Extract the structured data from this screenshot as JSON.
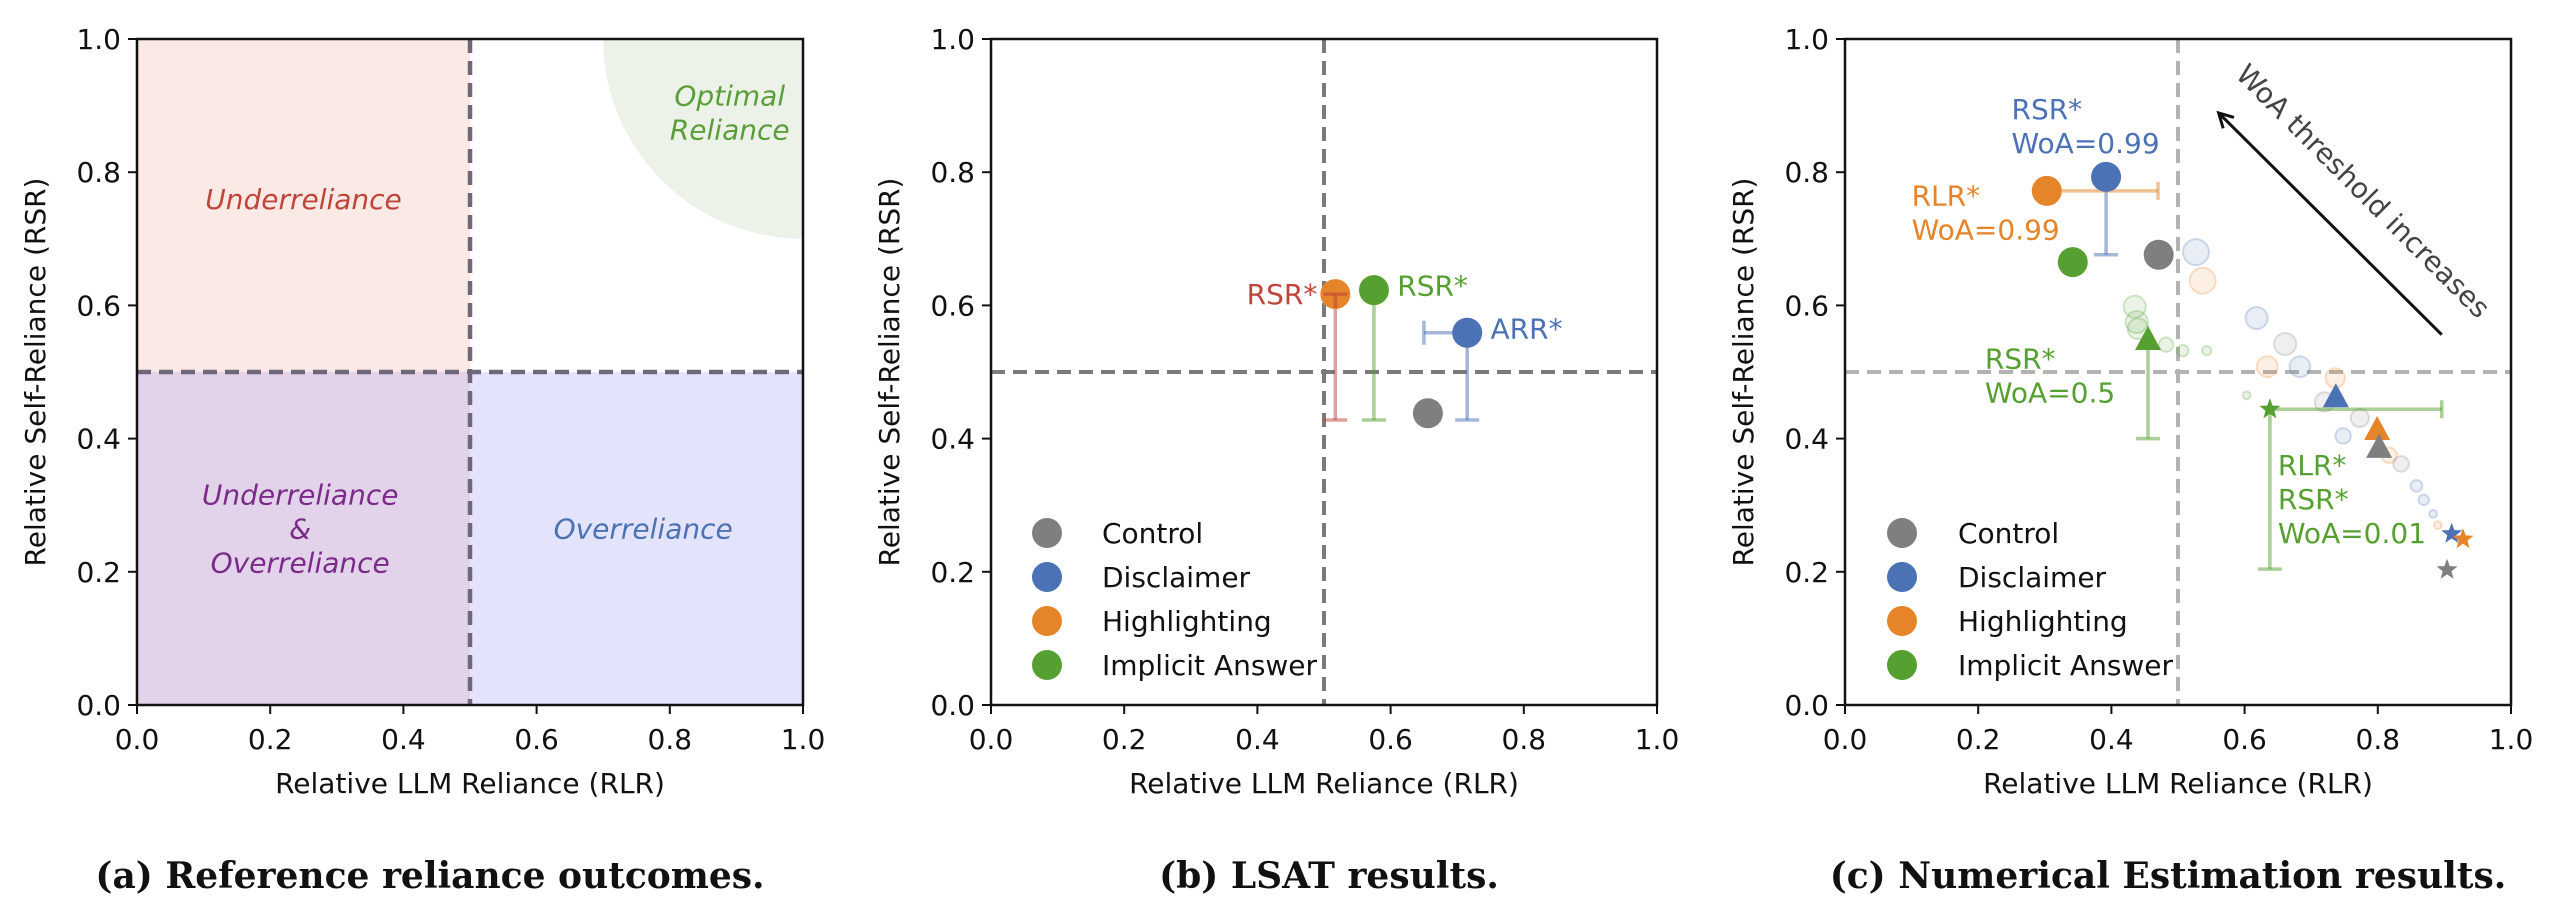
{
  "colors": {
    "control": "#7f7f7f",
    "disclaimer": "#4a72b5",
    "highlighting": "#e6842a",
    "implicit_answer": "#55a030",
    "underreliance": "#c0443a",
    "both": "#7b2a8a",
    "overreliance": "#4a72b5",
    "optimal": "#5a9e3a",
    "quad_under": "#fbe9e6",
    "quad_both": "#e2d3ea",
    "quad_over": "#e3e3fb",
    "optimal_fill": "#edf2e8"
  },
  "chart_data": [
    {
      "type": "scatter",
      "id": "a",
      "caption": "(a) Reference reliance outcomes.",
      "xlabel": "Relative LLM Reliance (RLR)",
      "ylabel": "Relative Self-Reliance (RSR)",
      "xlim": [
        0,
        1
      ],
      "ylim": [
        0,
        1
      ],
      "xticks": [
        "0.0",
        "0.2",
        "0.4",
        "0.6",
        "0.8",
        "1.0"
      ],
      "yticks": [
        "0.0",
        "0.2",
        "0.4",
        "0.6",
        "0.8",
        "1.0"
      ],
      "reference_lines": {
        "x": 0.5,
        "y": 0.5
      },
      "regions": [
        {
          "name": "Underreliance",
          "lines": [
            "Underreliance"
          ],
          "x": [
            0,
            0.5
          ],
          "y": [
            0.5,
            1
          ],
          "label_at": [
            0.25,
            0.76
          ],
          "color_key": "underreliance",
          "fill_key": "quad_under"
        },
        {
          "name": "Underreliance & Overreliance",
          "lines": [
            "Underreliance",
            "&",
            "Overreliance"
          ],
          "x": [
            0,
            0.5
          ],
          "y": [
            0,
            0.5
          ],
          "label_at": [
            0.245,
            0.265
          ],
          "color_key": "both",
          "fill_key": "quad_both"
        },
        {
          "name": "Overreliance",
          "lines": [
            "Overreliance"
          ],
          "x": [
            0.5,
            1
          ],
          "y": [
            0,
            0.5
          ],
          "label_at": [
            0.76,
            0.265
          ],
          "color_key": "overreliance",
          "fill_key": "quad_over"
        }
      ],
      "optimal_region": {
        "lines": [
          "Optimal",
          "Reliance"
        ],
        "center": [
          1,
          1
        ],
        "radius": 0.3,
        "label_at": [
          0.89,
          0.89
        ]
      }
    },
    {
      "type": "scatter",
      "id": "b",
      "caption": "(b) LSAT results.",
      "xlabel": "Relative LLM Reliance (RLR)",
      "ylabel": "Relative Self-Reliance (RSR)",
      "xlim": [
        0,
        1
      ],
      "ylim": [
        0,
        1
      ],
      "xticks": [
        "0.0",
        "0.2",
        "0.4",
        "0.6",
        "0.8",
        "1.0"
      ],
      "yticks": [
        "0.0",
        "0.2",
        "0.4",
        "0.6",
        "0.8",
        "1.0"
      ],
      "reference_lines": {
        "x": 0.5,
        "y": 0.5
      },
      "legend": {
        "placement": "lower-left",
        "entries": [
          {
            "label": "Control",
            "color_key": "control"
          },
          {
            "label": "Disclaimer",
            "color_key": "disclaimer"
          },
          {
            "label": "Highlighting",
            "color_key": "highlighting"
          },
          {
            "label": "Implicit Answer",
            "color_key": "implicit_answer"
          }
        ]
      },
      "points": [
        {
          "series": "Control",
          "color_key": "control",
          "x": 0.656,
          "y": 0.438
        },
        {
          "series": "Disclaimer",
          "color_key": "disclaimer",
          "x": 0.715,
          "y": 0.559,
          "err_y_low": 0.428,
          "err_x_low": 0.65
        },
        {
          "series": "Highlighting",
          "color_key": "highlighting",
          "x": 0.517,
          "y": 0.617,
          "err_y_low": 0.428,
          "err_color_key": "underreliance"
        },
        {
          "series": "Implicit Answer",
          "color_key": "implicit_answer",
          "x": 0.575,
          "y": 0.623,
          "err_y_low": 0.428
        }
      ],
      "annotations": [
        {
          "text": "RSR*",
          "x": 0.49,
          "y": 0.617,
          "anchor": "end",
          "color_key": "underreliance"
        },
        {
          "text": "RSR*",
          "x": 0.61,
          "y": 0.63,
          "anchor": "start",
          "color_key": "implicit_answer"
        },
        {
          "text": "ARR*",
          "x": 0.75,
          "y": 0.565,
          "anchor": "start",
          "color_key": "disclaimer"
        }
      ]
    },
    {
      "type": "scatter",
      "id": "c",
      "caption": "(c) Numerical Estimation results.",
      "xlabel": "Relative LLM Reliance (RLR)",
      "ylabel": "Relative Self-Reliance (RSR)",
      "xlim": [
        0,
        1
      ],
      "ylim": [
        0,
        1
      ],
      "xticks": [
        "0.0",
        "0.2",
        "0.4",
        "0.6",
        "0.8",
        "1.0"
      ],
      "yticks": [
        "0.0",
        "0.2",
        "0.4",
        "0.6",
        "0.8",
        "1.0"
      ],
      "reference_lines": {
        "x": 0.5,
        "y": 0.5
      },
      "legend": {
        "placement": "lower-left",
        "entries": [
          {
            "label": "Control",
            "color_key": "control"
          },
          {
            "label": "Disclaimer",
            "color_key": "disclaimer"
          },
          {
            "label": "Highlighting",
            "color_key": "highlighting"
          },
          {
            "label": "Implicit Answer",
            "color_key": "implicit_answer"
          }
        ]
      },
      "points": [
        {
          "series": "Disclaimer",
          "woa": 0.99,
          "marker": "circle",
          "color_key": "disclaimer",
          "x": 0.392,
          "y": 0.793,
          "err_y_low": 0.676
        },
        {
          "series": "Highlighting",
          "woa": 0.99,
          "marker": "circle",
          "color_key": "highlighting",
          "x": 0.303,
          "y": 0.772,
          "err_x_high": 0.47
        },
        {
          "series": "Implicit Answer",
          "woa": 0.99,
          "marker": "circle",
          "color_key": "implicit_answer",
          "x": 0.342,
          "y": 0.665
        },
        {
          "series": "Control",
          "woa": 0.99,
          "marker": "circle",
          "color_key": "control",
          "x": 0.471,
          "y": 0.676
        },
        {
          "series": "Implicit Answer",
          "woa": 0.5,
          "marker": "triangle",
          "color_key": "implicit_answer",
          "x": 0.455,
          "y": 0.548,
          "err_y_low": 0.4
        },
        {
          "series": "Disclaimer",
          "woa": 0.5,
          "marker": "triangle",
          "color_key": "disclaimer",
          "x": 0.737,
          "y": 0.462
        },
        {
          "series": "Highlighting",
          "woa": 0.5,
          "marker": "triangle",
          "color_key": "highlighting",
          "x": 0.799,
          "y": 0.413
        },
        {
          "series": "Control",
          "woa": 0.5,
          "marker": "triangle",
          "color_key": "control",
          "x": 0.802,
          "y": 0.386
        },
        {
          "series": "Implicit Answer",
          "woa": 0.01,
          "marker": "star",
          "color_key": "implicit_answer",
          "x": 0.638,
          "y": 0.444,
          "err_x_high": 0.896,
          "err_y_low": 0.204
        },
        {
          "series": "Disclaimer",
          "woa": 0.01,
          "marker": "star",
          "color_key": "disclaimer",
          "x": 0.911,
          "y": 0.257
        },
        {
          "series": "Highlighting",
          "woa": 0.01,
          "marker": "star",
          "color_key": "highlighting",
          "x": 0.928,
          "y": 0.249
        },
        {
          "series": "Control",
          "woa": 0.01,
          "marker": "star",
          "color_key": "control",
          "x": 0.904,
          "y": 0.203
        }
      ],
      "faint_points": [
        {
          "color_key": "disclaimer",
          "x": 0.527,
          "y": 0.68,
          "size": 1.0
        },
        {
          "color_key": "highlighting",
          "x": 0.537,
          "y": 0.637,
          "size": 1.0
        },
        {
          "color_key": "disclaimer",
          "x": 0.618,
          "y": 0.581,
          "size": 0.85
        },
        {
          "color_key": "control",
          "x": 0.661,
          "y": 0.542,
          "size": 0.85
        },
        {
          "color_key": "highlighting",
          "x": 0.634,
          "y": 0.508,
          "size": 0.8
        },
        {
          "color_key": "disclaimer",
          "x": 0.683,
          "y": 0.508,
          "size": 0.8
        },
        {
          "color_key": "highlighting",
          "x": 0.736,
          "y": 0.491,
          "size": 0.75
        },
        {
          "color_key": "control",
          "x": 0.72,
          "y": 0.455,
          "size": 0.75
        },
        {
          "color_key": "control",
          "x": 0.773,
          "y": 0.431,
          "size": 0.7
        },
        {
          "color_key": "disclaimer",
          "x": 0.748,
          "y": 0.404,
          "size": 0.6
        },
        {
          "color_key": "highlighting",
          "x": 0.817,
          "y": 0.375,
          "size": 0.6
        },
        {
          "color_key": "control",
          "x": 0.835,
          "y": 0.362,
          "size": 0.6
        },
        {
          "color_key": "disclaimer",
          "x": 0.858,
          "y": 0.329,
          "size": 0.45
        },
        {
          "color_key": "disclaimer",
          "x": 0.869,
          "y": 0.308,
          "size": 0.4
        },
        {
          "color_key": "disclaimer",
          "x": 0.883,
          "y": 0.287,
          "size": 0.3
        },
        {
          "color_key": "highlighting",
          "x": 0.89,
          "y": 0.27,
          "size": 0.3
        },
        {
          "color_key": "implicit_answer",
          "x": 0.435,
          "y": 0.598,
          "size": 0.85
        },
        {
          "color_key": "implicit_answer",
          "x": 0.438,
          "y": 0.575,
          "size": 0.85
        },
        {
          "color_key": "implicit_answer",
          "x": 0.44,
          "y": 0.565,
          "size": 0.8
        },
        {
          "color_key": "implicit_answer",
          "x": 0.482,
          "y": 0.541,
          "size": 0.55
        },
        {
          "color_key": "implicit_answer",
          "x": 0.507,
          "y": 0.532,
          "size": 0.45
        },
        {
          "color_key": "implicit_answer",
          "x": 0.543,
          "y": 0.532,
          "size": 0.35
        },
        {
          "color_key": "implicit_answer",
          "x": 0.603,
          "y": 0.465,
          "size": 0.3
        }
      ],
      "annotations": [
        {
          "lines": [
            "RSR*",
            "WoA=0.99"
          ],
          "x": 0.25,
          "y": 0.895,
          "anchor": "start",
          "color_key": "disclaimer"
        },
        {
          "lines": [
            "RLR*",
            "WoA=0.99"
          ],
          "x": 0.1,
          "y": 0.765,
          "anchor": "start",
          "color_key": "highlighting"
        },
        {
          "lines": [
            "RSR*",
            "WoA=0.5"
          ],
          "x": 0.21,
          "y": 0.52,
          "anchor": "start",
          "color_key": "implicit_answer"
        },
        {
          "lines": [
            "RLR*",
            "RSR*",
            "WoA=0.01"
          ],
          "x": 0.65,
          "y": 0.36,
          "anchor": "start",
          "color_key": "implicit_answer"
        }
      ],
      "arrow": {
        "text": "WoA threshold increases",
        "from": [
          0.896,
          0.556
        ],
        "to": [
          0.561,
          0.889
        ]
      }
    }
  ]
}
